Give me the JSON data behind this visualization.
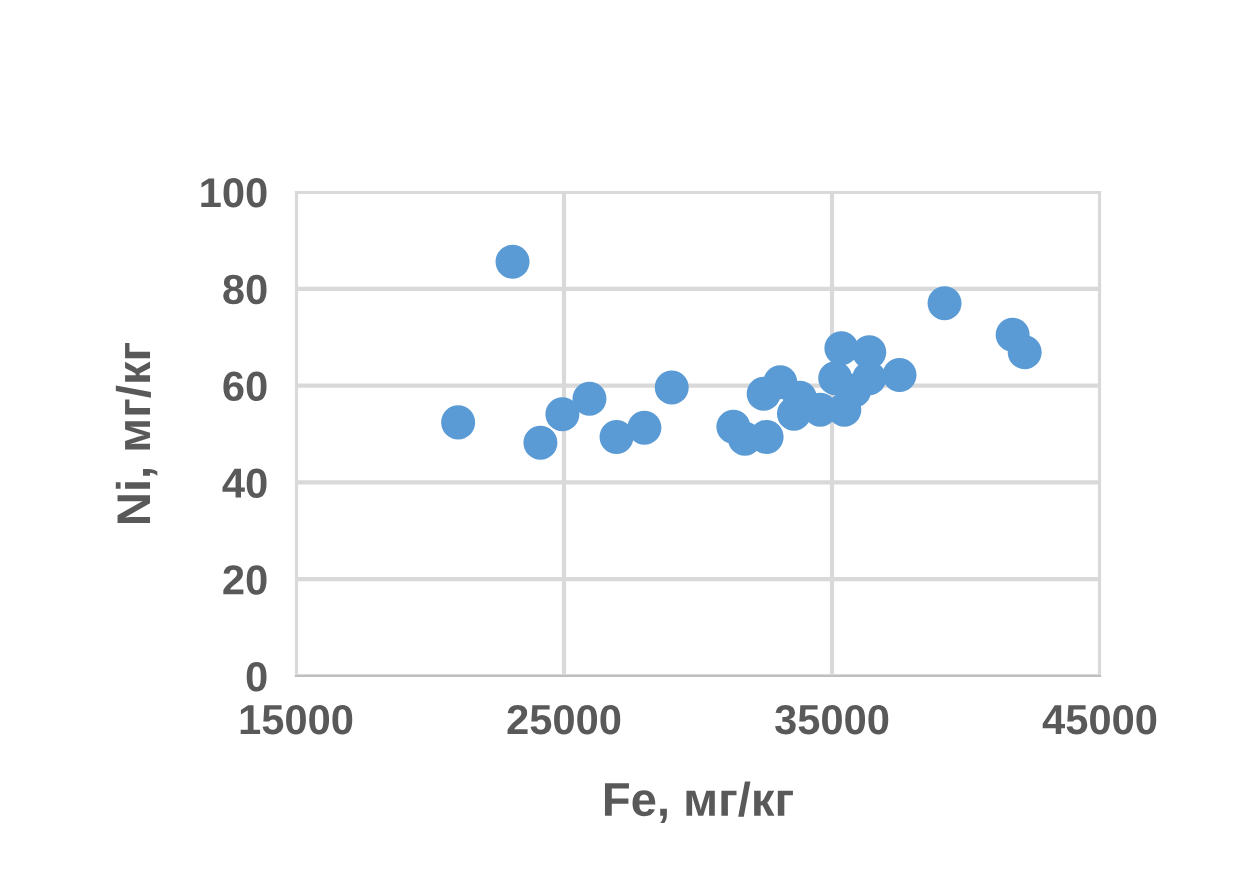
{
  "chart_data": {
    "type": "scatter",
    "xlabel": "Fe, мг/кг",
    "ylabel": "Ni, мг/кг",
    "x": [
      21050,
      23080,
      24120,
      24940,
      25950,
      26960,
      28000,
      29020,
      31320,
      31750,
      32560,
      32450,
      33070,
      33580,
      33800,
      34560,
      35350,
      35460,
      35120,
      36390,
      36390,
      35830,
      37520,
      39200,
      41740,
      42190
    ],
    "values": [
      52.4,
      85.6,
      48.2,
      54.1,
      57.3,
      49.4,
      51.3,
      59.6,
      51.5,
      49.0,
      49.4,
      58.3,
      60.7,
      54.2,
      57.5,
      55.0,
      67.7,
      55.0,
      61.5,
      66.9,
      61.5,
      59.0,
      62.2,
      77.0,
      70.5,
      66.9
    ],
    "color": "#5b9bd5",
    "marker": "circle",
    "grid": true,
    "xlim": [
      15000,
      45000
    ],
    "xticks": [
      15000,
      25000,
      35000,
      45000
    ],
    "ylim": [
      0,
      100
    ],
    "yticks": [
      0,
      20,
      40,
      60,
      80,
      100
    ]
  }
}
